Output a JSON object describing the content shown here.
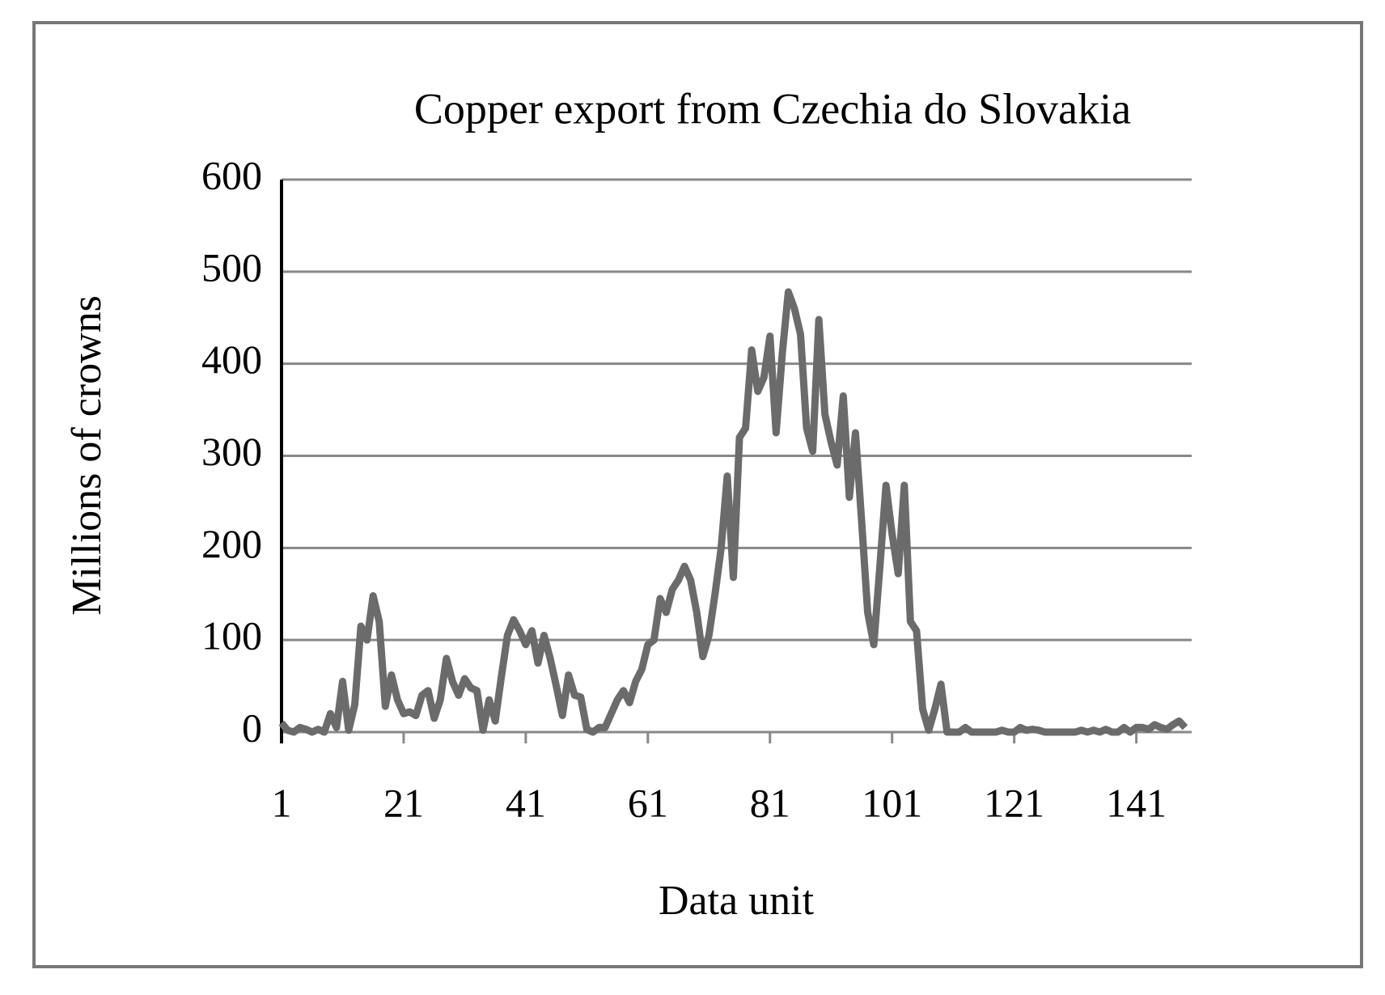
{
  "chart_data": {
    "type": "line",
    "title": "Copper export from Czechia do Slovakia",
    "x_label": "Data unit",
    "y_label": "Millions of crowns",
    "color": "#6b6b6b",
    "grid": true,
    "xlim": [
      1,
      149
    ],
    "xticks": [
      1,
      21,
      41,
      61,
      81,
      101,
      121,
      141
    ],
    "ylim": [
      0,
      600
    ],
    "yticks": [
      0,
      100,
      200,
      300,
      400,
      500,
      600
    ],
    "x": [
      1,
      2,
      3,
      4,
      5,
      6,
      7,
      8,
      9,
      10,
      11,
      12,
      13,
      14,
      15,
      16,
      17,
      18,
      19,
      20,
      21,
      22,
      23,
      24,
      25,
      26,
      27,
      28,
      29,
      30,
      31,
      32,
      33,
      34,
      35,
      36,
      37,
      38,
      39,
      40,
      41,
      42,
      43,
      44,
      45,
      46,
      47,
      48,
      49,
      50,
      51,
      52,
      53,
      54,
      55,
      56,
      57,
      58,
      59,
      60,
      61,
      62,
      63,
      64,
      65,
      66,
      67,
      68,
      69,
      70,
      71,
      72,
      73,
      74,
      75,
      76,
      77,
      78,
      79,
      80,
      81,
      82,
      83,
      84,
      85,
      86,
      87,
      88,
      89,
      90,
      91,
      92,
      93,
      94,
      95,
      96,
      97,
      98,
      99,
      100,
      101,
      102,
      103,
      104,
      105,
      106,
      107,
      108,
      109,
      110,
      111,
      112,
      113,
      114,
      115,
      116,
      117,
      118,
      119,
      120,
      121,
      122,
      123,
      124,
      125,
      126,
      127,
      128,
      129,
      130,
      131,
      132,
      133,
      134,
      135,
      136,
      137,
      138,
      139,
      140,
      141,
      142,
      143,
      144,
      145,
      146,
      147,
      148,
      149
    ],
    "values": [
      10,
      2,
      0,
      5,
      3,
      0,
      3,
      0,
      20,
      5,
      55,
      2,
      30,
      115,
      100,
      148,
      120,
      28,
      62,
      35,
      20,
      22,
      18,
      40,
      45,
      15,
      35,
      80,
      55,
      40,
      58,
      48,
      45,
      2,
      35,
      12,
      60,
      105,
      122,
      110,
      95,
      110,
      75,
      105,
      80,
      50,
      18,
      62,
      40,
      38,
      3,
      0,
      5,
      5,
      20,
      35,
      45,
      32,
      55,
      68,
      95,
      100,
      145,
      130,
      155,
      165,
      180,
      165,
      130,
      82,
      105,
      150,
      200,
      278,
      168,
      320,
      330,
      415,
      370,
      385,
      430,
      325,
      410,
      478,
      460,
      432,
      330,
      305,
      448,
      345,
      315,
      290,
      365,
      255,
      325,
      230,
      130,
      95,
      180,
      268,
      215,
      172,
      268,
      120,
      110,
      25,
      2,
      25,
      52,
      0,
      0,
      0,
      5,
      0,
      0,
      0,
      0,
      0,
      2,
      0,
      0,
      5,
      2,
      3,
      2,
      0,
      0,
      0,
      0,
      0,
      0,
      2,
      0,
      2,
      0,
      3,
      0,
      0,
      5,
      0,
      5,
      5,
      3,
      8,
      5,
      3,
      8,
      12,
      5
    ]
  }
}
